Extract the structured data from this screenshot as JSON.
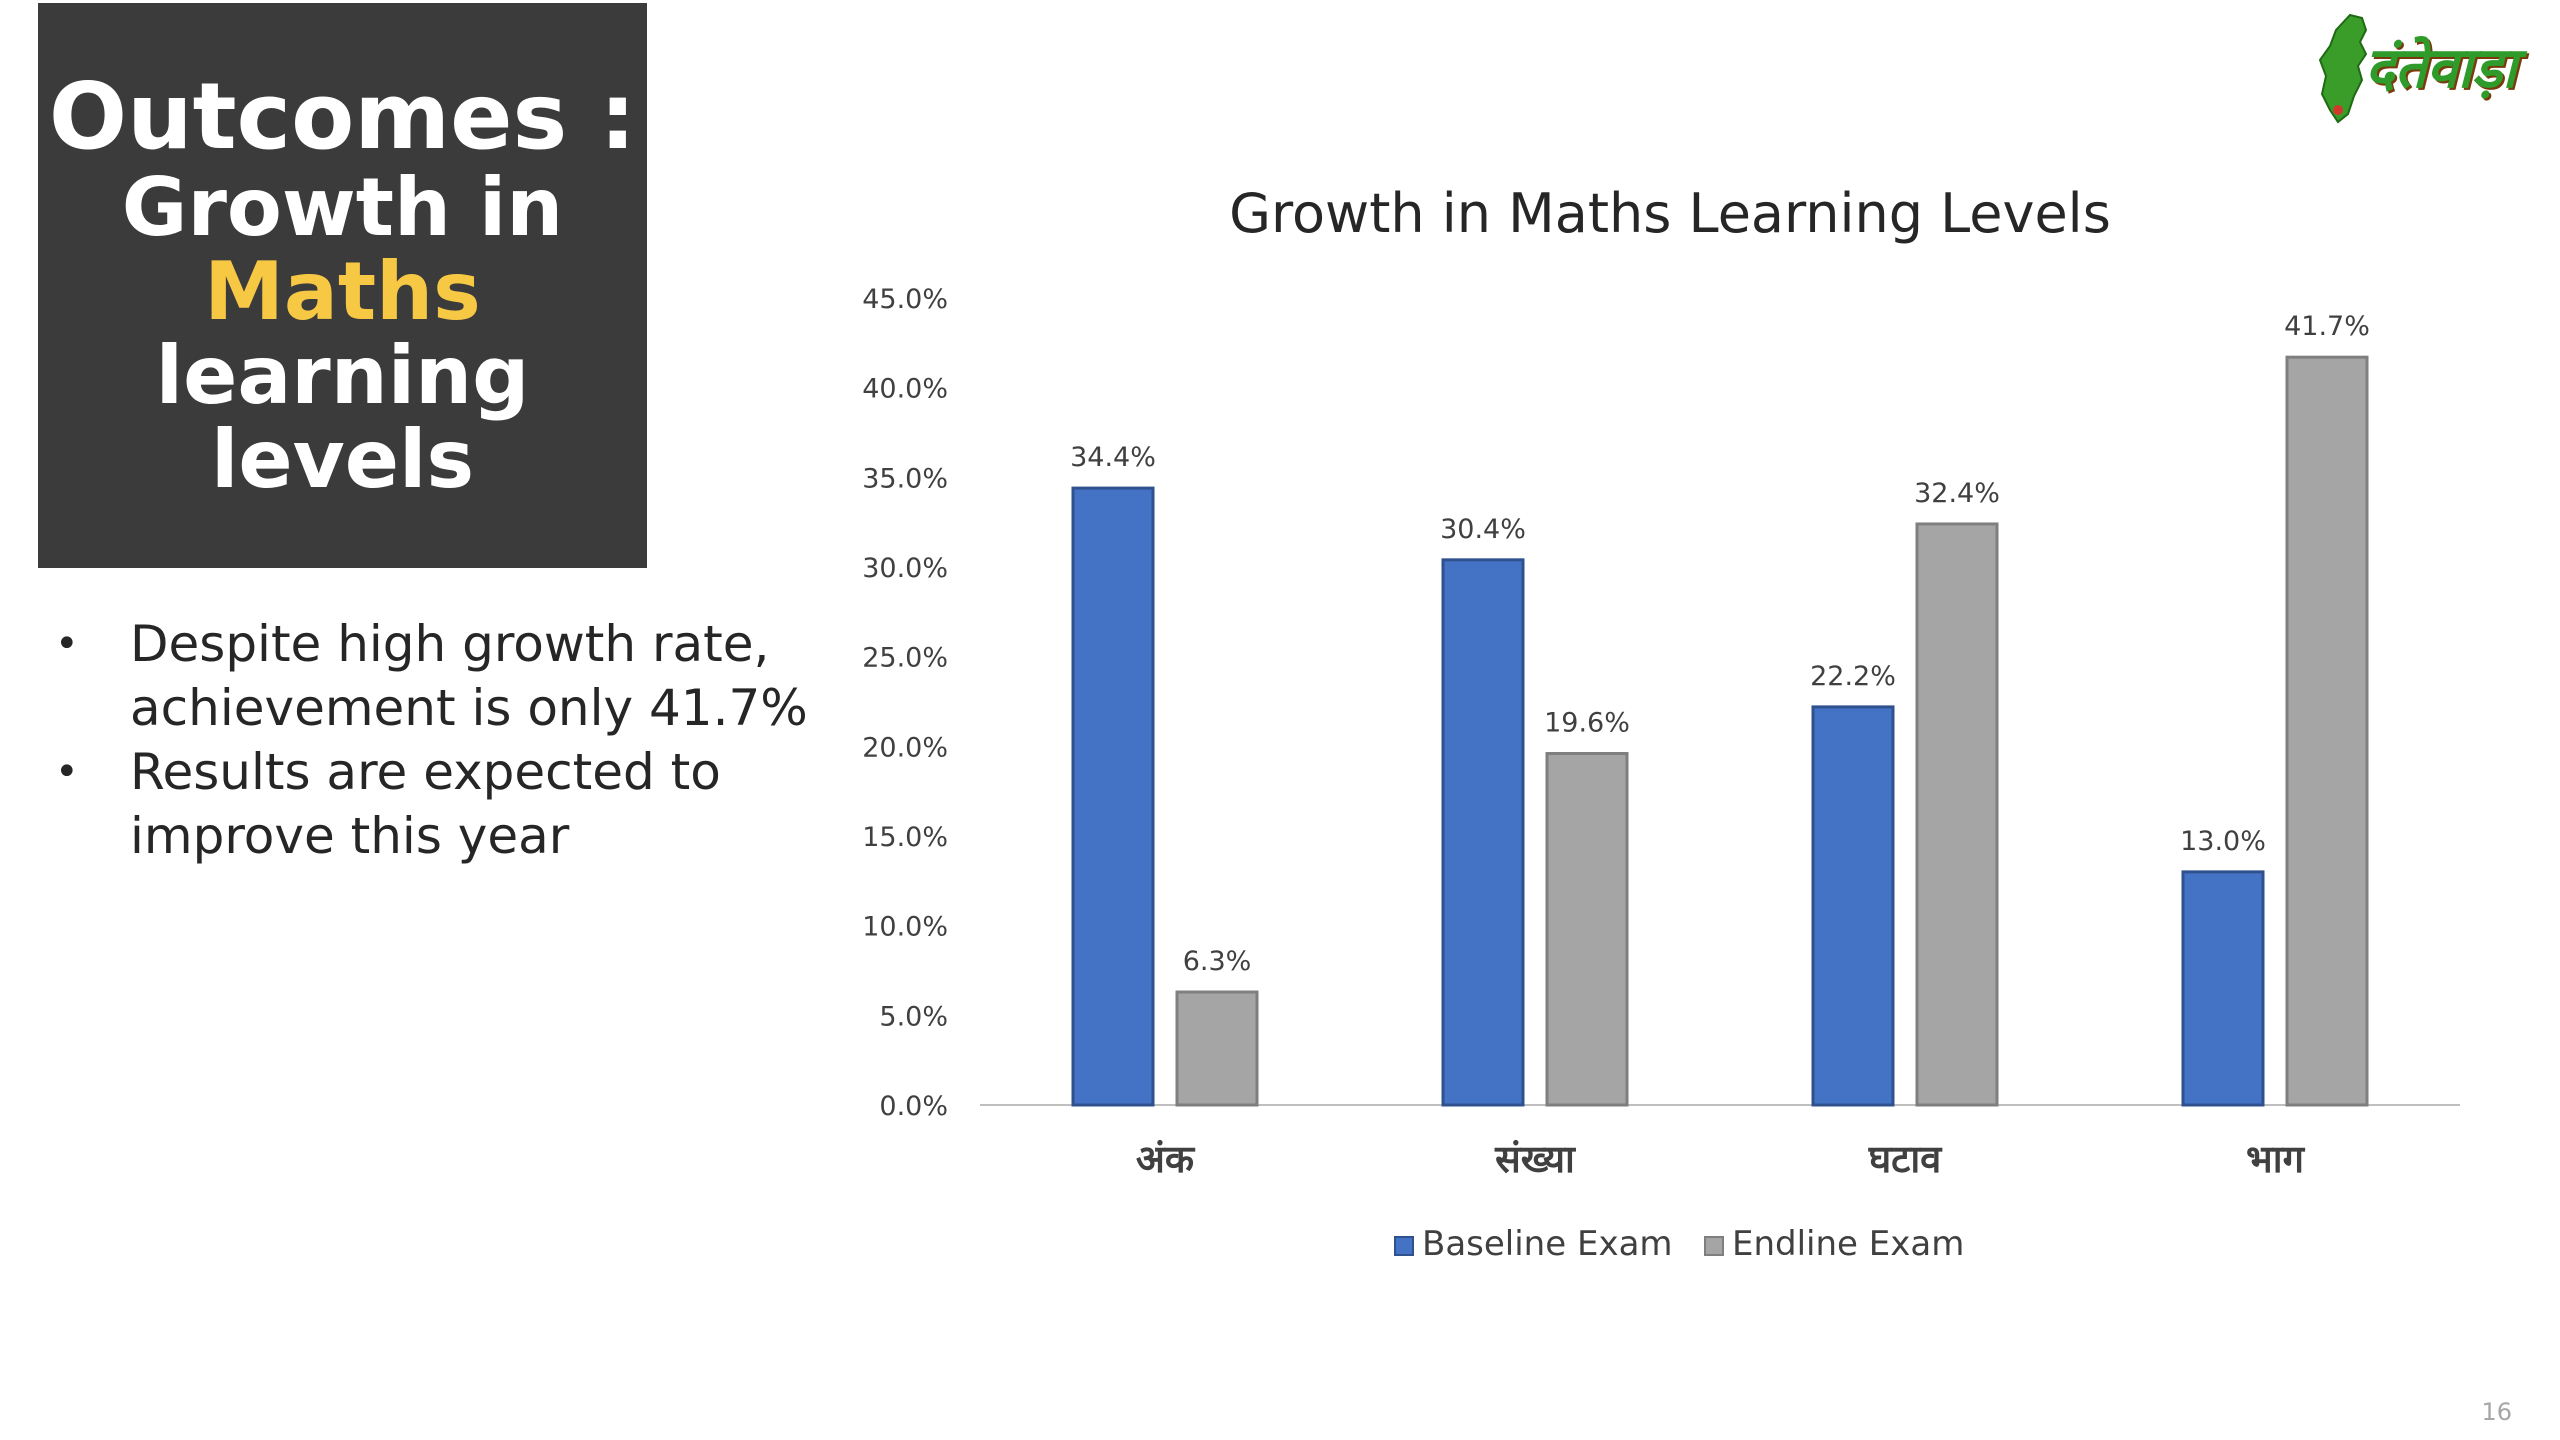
{
  "title_box": {
    "line1": "Outcomes :",
    "line2": "Growth in",
    "line3": "Maths",
    "line4": "learning",
    "line5": "levels"
  },
  "bullets": [
    "Despite high growth rate, achievement is only 41.7%",
    "Results are expected to improve this year"
  ],
  "logo": {
    "text": "दंतेवाड़ा",
    "icon": "chhattisgarh-map-icon"
  },
  "page_number": "16",
  "colors": {
    "baseline": "#4472c4",
    "endline": "#a5a5a5",
    "title_box": "#3b3b3b",
    "highlight": "#f7c844"
  },
  "chart_data": {
    "type": "bar",
    "title": "Growth in Maths Learning Levels",
    "categories": [
      "अंक",
      "संख्या",
      "घटाव",
      "भाग"
    ],
    "series": [
      {
        "name": "Baseline Exam",
        "values": [
          34.4,
          30.4,
          22.2,
          13.0
        ],
        "labels": [
          "34.4%",
          "30.4%",
          "22.2%",
          "13.0%"
        ]
      },
      {
        "name": "Endline Exam",
        "values": [
          6.3,
          19.6,
          32.4,
          41.7
        ],
        "labels": [
          "6.3%",
          "19.6%",
          "32.4%",
          "41.7%"
        ]
      }
    ],
    "ylim": [
      0,
      45
    ],
    "yticks": [
      "0.0%",
      "5.0%",
      "10.0%",
      "15.0%",
      "20.0%",
      "25.0%",
      "30.0%",
      "35.0%",
      "40.0%",
      "45.0%"
    ],
    "xlabel": "",
    "ylabel": "",
    "grid": false,
    "legend_position": "bottom"
  }
}
